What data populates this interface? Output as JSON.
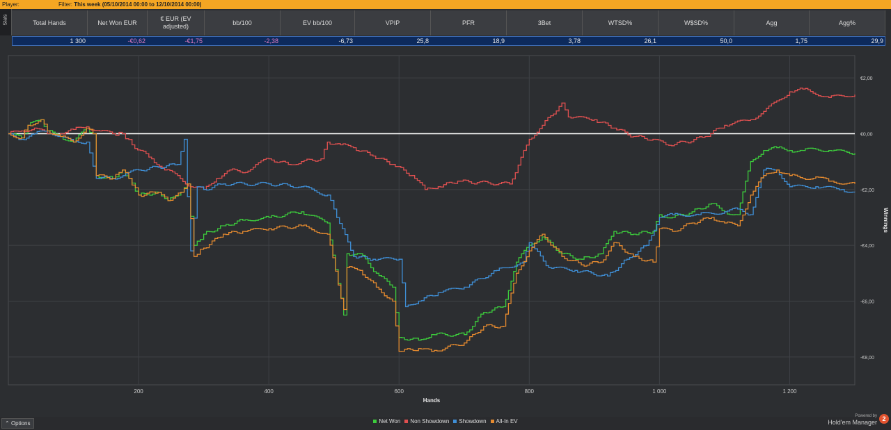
{
  "filterbar": {
    "player_label": "Player:",
    "filter_label": "Filter:",
    "filter_value": "This week (05/10/2014 00:00 to 12/10/2014 00:00)"
  },
  "stats_tab": "Stats",
  "stats": {
    "headers": [
      "Total Hands",
      "Net Won EUR",
      "€ EUR (EV adjusted)",
      "bb/100",
      "EV bb/100",
      "VPIP",
      "PFR",
      "3Bet",
      "WTSD%",
      "W$SD%",
      "Agg",
      "Agg%"
    ],
    "values": [
      "1 300",
      "-€0,62",
      "-€1,75",
      "-2,38",
      "-6,73",
      "25,8",
      "18,9",
      "3,78",
      "26,1",
      "50,0",
      "1,75",
      "29,9"
    ],
    "negative": [
      false,
      true,
      true,
      true,
      false,
      false,
      false,
      false,
      false,
      false,
      false,
      false
    ]
  },
  "chart_data": {
    "type": "line",
    "xlabel": "Hands",
    "ylabel": "Winnings",
    "x_ticks": [
      200,
      400,
      600,
      800,
      1000,
      1200
    ],
    "x_tick_labels": [
      "200",
      "400",
      "600",
      "800",
      "1 000",
      "1 200"
    ],
    "y_ticks": [
      2,
      0,
      -2,
      -4,
      -6,
      -8
    ],
    "y_tick_labels": [
      "€2,00",
      "€0,00",
      "-€2,00",
      "-€4,00",
      "-€6,00",
      "-€8,00"
    ],
    "xlim": [
      0,
      1300
    ],
    "ylim": [
      -9,
      2.8
    ],
    "grid": true,
    "legend_position": "bottom-center",
    "series": [
      {
        "name": "Net Won",
        "color": "#3ccc3c",
        "points": [
          [
            0,
            0
          ],
          [
            20,
            -0.15
          ],
          [
            30,
            0.3
          ],
          [
            50,
            0.5
          ],
          [
            60,
            0.1
          ],
          [
            80,
            -0.1
          ],
          [
            100,
            -0.3
          ],
          [
            120,
            0.2
          ],
          [
            130,
            0
          ],
          [
            135,
            -1.5
          ],
          [
            160,
            -1.6
          ],
          [
            175,
            -1.3
          ],
          [
            185,
            -1.6
          ],
          [
            200,
            -2.2
          ],
          [
            230,
            -2.1
          ],
          [
            245,
            -2.4
          ],
          [
            265,
            -2.1
          ],
          [
            275,
            -1.8
          ],
          [
            285,
            -4.0
          ],
          [
            300,
            -3.6
          ],
          [
            330,
            -3.3
          ],
          [
            360,
            -3.1
          ],
          [
            400,
            -3.0
          ],
          [
            450,
            -2.8
          ],
          [
            490,
            -3.2
          ],
          [
            515,
            -6.5
          ],
          [
            520,
            -4.3
          ],
          [
            540,
            -4.3
          ],
          [
            565,
            -5.0
          ],
          [
            590,
            -5.5
          ],
          [
            600,
            -7.3
          ],
          [
            630,
            -7.4
          ],
          [
            650,
            -7.2
          ],
          [
            700,
            -7.2
          ],
          [
            730,
            -6.4
          ],
          [
            760,
            -6.2
          ],
          [
            780,
            -4.6
          ],
          [
            800,
            -4.0
          ],
          [
            820,
            -3.7
          ],
          [
            850,
            -4.3
          ],
          [
            880,
            -4.5
          ],
          [
            910,
            -4.3
          ],
          [
            930,
            -3.5
          ],
          [
            960,
            -3.6
          ],
          [
            990,
            -3.5
          ],
          [
            1000,
            -2.9
          ],
          [
            1020,
            -3.0
          ],
          [
            1050,
            -2.8
          ],
          [
            1080,
            -2.5
          ],
          [
            1100,
            -2.8
          ],
          [
            1120,
            -2.9
          ],
          [
            1140,
            -1.0
          ],
          [
            1160,
            -0.6
          ],
          [
            1180,
            -0.5
          ],
          [
            1200,
            -0.6
          ],
          [
            1220,
            -0.6
          ],
          [
            1240,
            -0.55
          ],
          [
            1260,
            -0.6
          ],
          [
            1300,
            -0.7
          ]
        ]
      },
      {
        "name": "Non Showdown",
        "color": "#e05050",
        "points": [
          [
            0,
            0
          ],
          [
            20,
            0.1
          ],
          [
            40,
            0.2
          ],
          [
            60,
            0
          ],
          [
            80,
            0
          ],
          [
            100,
            0.15
          ],
          [
            120,
            0.25
          ],
          [
            140,
            0.1
          ],
          [
            160,
            0
          ],
          [
            175,
            0
          ],
          [
            190,
            -0.4
          ],
          [
            220,
            -0.9
          ],
          [
            240,
            -1.3
          ],
          [
            260,
            -1.5
          ],
          [
            280,
            -1.9
          ],
          [
            300,
            -2.0
          ],
          [
            320,
            -1.6
          ],
          [
            340,
            -1.3
          ],
          [
            360,
            -1.4
          ],
          [
            380,
            -1.1
          ],
          [
            400,
            -0.9
          ],
          [
            430,
            -1.1
          ],
          [
            450,
            -1.0
          ],
          [
            480,
            -0.9
          ],
          [
            490,
            -0.3
          ],
          [
            510,
            -0.4
          ],
          [
            530,
            -0.5
          ],
          [
            560,
            -0.8
          ],
          [
            590,
            -1.1
          ],
          [
            620,
            -1.5
          ],
          [
            640,
            -2.0
          ],
          [
            660,
            -1.9
          ],
          [
            690,
            -1.7
          ],
          [
            720,
            -1.75
          ],
          [
            770,
            -1.8
          ],
          [
            800,
            -0.2
          ],
          [
            820,
            0.3
          ],
          [
            850,
            1.1
          ],
          [
            860,
            0.6
          ],
          [
            900,
            0.5
          ],
          [
            930,
            0.2
          ],
          [
            960,
            -0.1
          ],
          [
            990,
            -0.2
          ],
          [
            1010,
            -0.4
          ],
          [
            1040,
            -0.3
          ],
          [
            1070,
            -0.1
          ],
          [
            1100,
            0.3
          ],
          [
            1140,
            0.5
          ],
          [
            1160,
            0.8
          ],
          [
            1200,
            1.5
          ],
          [
            1220,
            1.6
          ],
          [
            1260,
            1.3
          ],
          [
            1300,
            1.4
          ]
        ]
      },
      {
        "name": "Showdown",
        "color": "#3f8fd6",
        "points": [
          [
            0,
            0
          ],
          [
            20,
            -0.2
          ],
          [
            40,
            0
          ],
          [
            60,
            0.1
          ],
          [
            80,
            -0.1
          ],
          [
            100,
            -0.3
          ],
          [
            120,
            -0.3
          ],
          [
            135,
            -1.6
          ],
          [
            160,
            -1.6
          ],
          [
            200,
            -1.3
          ],
          [
            230,
            -1.2
          ],
          [
            260,
            -1.1
          ],
          [
            270,
            -0.2
          ],
          [
            280,
            -4.2
          ],
          [
            290,
            -1.9
          ],
          [
            300,
            -2.0
          ],
          [
            330,
            -1.8
          ],
          [
            400,
            -1.8
          ],
          [
            450,
            -1.9
          ],
          [
            490,
            -2.2
          ],
          [
            500,
            -2.7
          ],
          [
            530,
            -4.4
          ],
          [
            560,
            -4.5
          ],
          [
            600,
            -4.5
          ],
          [
            610,
            -6.2
          ],
          [
            630,
            -6.0
          ],
          [
            660,
            -5.7
          ],
          [
            700,
            -5.5
          ],
          [
            750,
            -4.9
          ],
          [
            790,
            -4.6
          ],
          [
            800,
            -3.9
          ],
          [
            830,
            -4.8
          ],
          [
            870,
            -4.9
          ],
          [
            920,
            -5.1
          ],
          [
            950,
            -4.5
          ],
          [
            980,
            -4.0
          ],
          [
            1000,
            -3.0
          ],
          [
            1020,
            -2.9
          ],
          [
            1060,
            -2.9
          ],
          [
            1100,
            -2.8
          ],
          [
            1120,
            -2.7
          ],
          [
            1140,
            -2.9
          ],
          [
            1160,
            -1.3
          ],
          [
            1180,
            -1.3
          ],
          [
            1200,
            -1.9
          ],
          [
            1240,
            -1.9
          ],
          [
            1280,
            -2.0
          ],
          [
            1300,
            -2.1
          ]
        ]
      },
      {
        "name": "All-In EV",
        "color": "#e58a2f",
        "points": [
          [
            0,
            0
          ],
          [
            20,
            -0.15
          ],
          [
            30,
            0.3
          ],
          [
            50,
            0.5
          ],
          [
            60,
            0.1
          ],
          [
            80,
            -0.1
          ],
          [
            100,
            -0.3
          ],
          [
            120,
            0.2
          ],
          [
            130,
            0
          ],
          [
            135,
            -1.5
          ],
          [
            160,
            -1.6
          ],
          [
            175,
            -1.3
          ],
          [
            185,
            -1.6
          ],
          [
            200,
            -2.2
          ],
          [
            230,
            -2.1
          ],
          [
            245,
            -2.4
          ],
          [
            265,
            -2.1
          ],
          [
            275,
            -1.8
          ],
          [
            285,
            -4.4
          ],
          [
            300,
            -4.1
          ],
          [
            330,
            -3.6
          ],
          [
            360,
            -3.5
          ],
          [
            400,
            -3.4
          ],
          [
            450,
            -3.3
          ],
          [
            490,
            -3.6
          ],
          [
            515,
            -6.3
          ],
          [
            520,
            -4.8
          ],
          [
            540,
            -4.9
          ],
          [
            565,
            -5.5
          ],
          [
            590,
            -6.0
          ],
          [
            600,
            -7.8
          ],
          [
            630,
            -7.7
          ],
          [
            650,
            -7.8
          ],
          [
            700,
            -7.5
          ],
          [
            730,
            -6.9
          ],
          [
            760,
            -6.9
          ],
          [
            780,
            -5.0
          ],
          [
            800,
            -4.2
          ],
          [
            820,
            -3.6
          ],
          [
            850,
            -4.4
          ],
          [
            880,
            -4.7
          ],
          [
            910,
            -4.6
          ],
          [
            930,
            -3.9
          ],
          [
            960,
            -4.4
          ],
          [
            990,
            -4.6
          ],
          [
            1000,
            -3.4
          ],
          [
            1020,
            -3.5
          ],
          [
            1050,
            -3.2
          ],
          [
            1080,
            -3.0
          ],
          [
            1100,
            -3.2
          ],
          [
            1120,
            -3.3
          ],
          [
            1140,
            -2.2
          ],
          [
            1160,
            -1.5
          ],
          [
            1180,
            -1.3
          ],
          [
            1200,
            -1.5
          ],
          [
            1220,
            -1.6
          ],
          [
            1240,
            -1.55
          ],
          [
            1260,
            -1.7
          ],
          [
            1300,
            -1.8
          ]
        ]
      }
    ]
  },
  "bottom": {
    "options_label": "Options",
    "powered_by": "Powered by",
    "brand": "Hold'em Manager",
    "brand_mark": "2"
  }
}
